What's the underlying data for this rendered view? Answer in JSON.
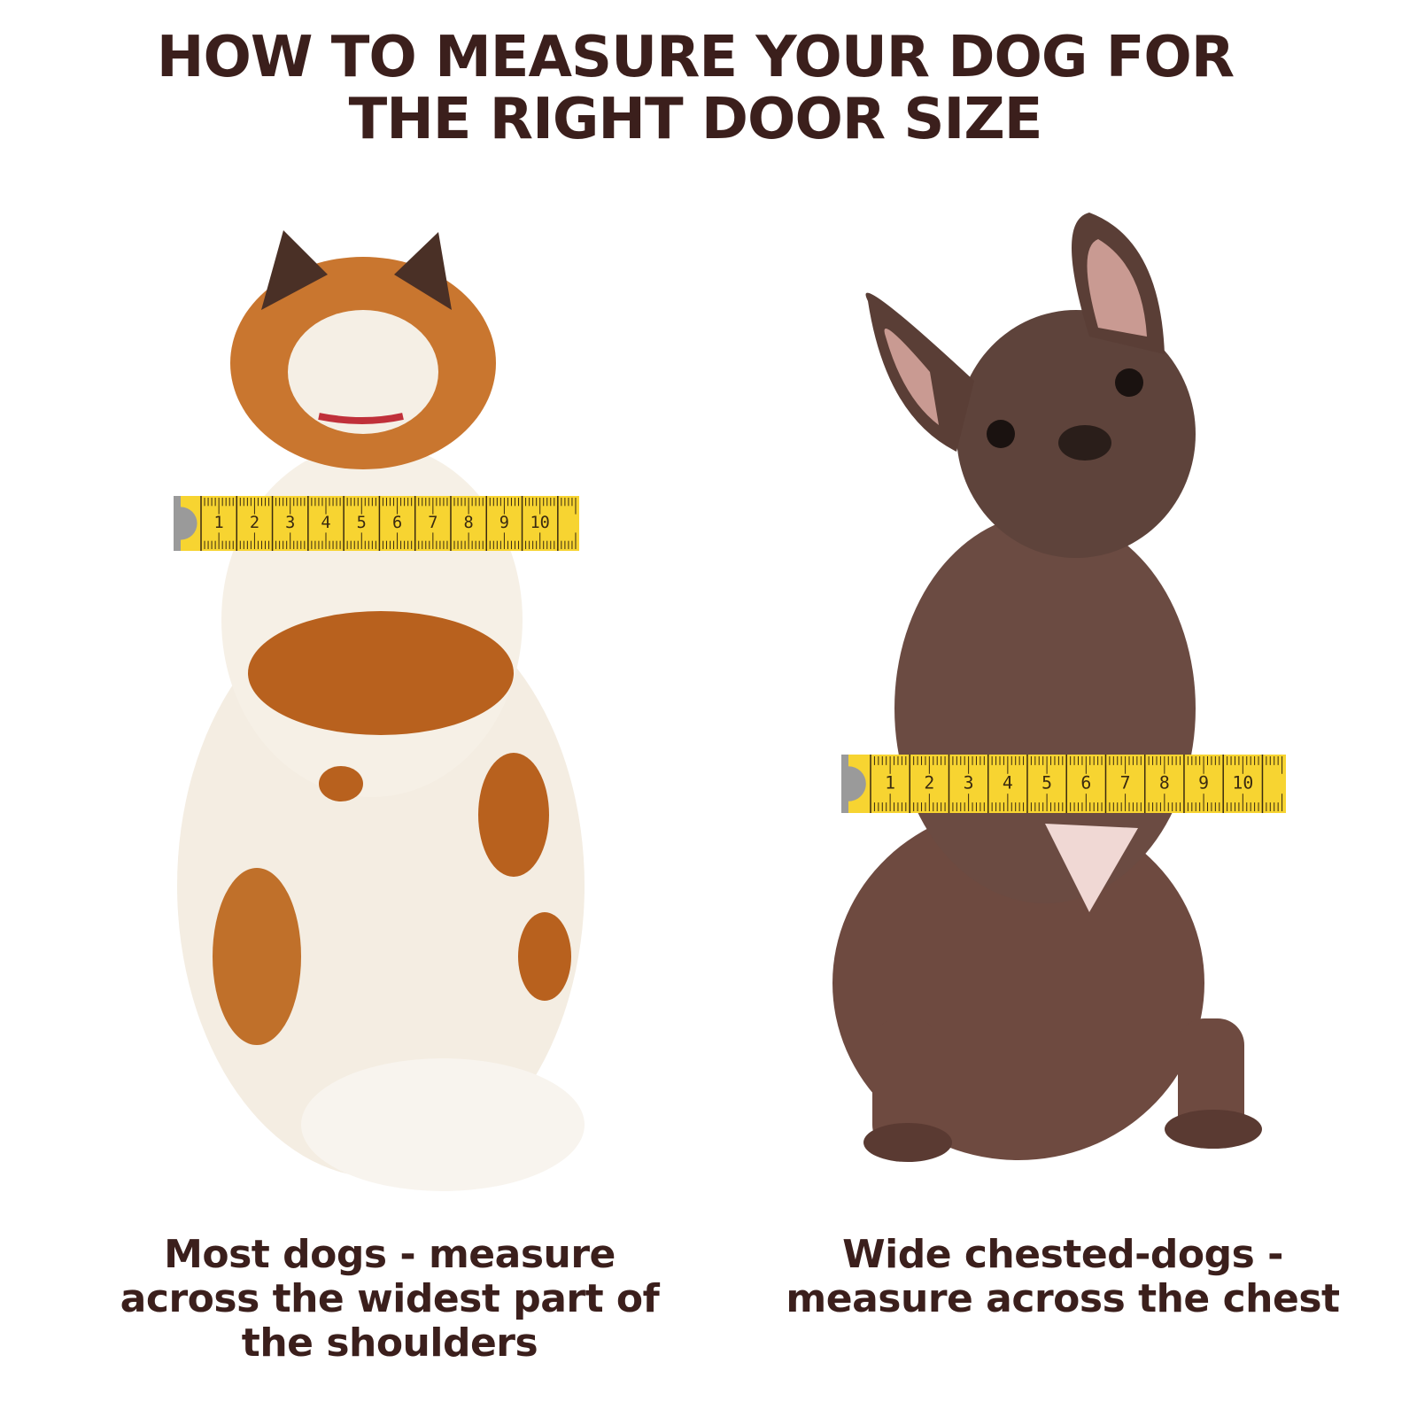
{
  "title": {
    "line1": "HOW TO MEASURE YOUR DOG FOR",
    "line2": "THE RIGHT DOOR SIZE"
  },
  "left_panel": {
    "caption": {
      "line1": "Most dogs - measure",
      "line2": "across the widest part of",
      "line3": "the shoulders"
    },
    "tape_numbers": [
      "1",
      "2",
      "3",
      "4",
      "5",
      "6",
      "7",
      "8",
      "9",
      "10"
    ]
  },
  "right_panel": {
    "caption": {
      "line1": "Wide chested-dogs -",
      "line2": "measure across the chest"
    },
    "tape_numbers": [
      "1",
      "2",
      "3",
      "4",
      "5",
      "6",
      "7",
      "8",
      "9",
      "10"
    ]
  },
  "colors": {
    "text": "#3b1f1c",
    "tape": "#f7d431",
    "tape_marks": "#3a2a10",
    "tape_cap": "#9a9a9a"
  }
}
